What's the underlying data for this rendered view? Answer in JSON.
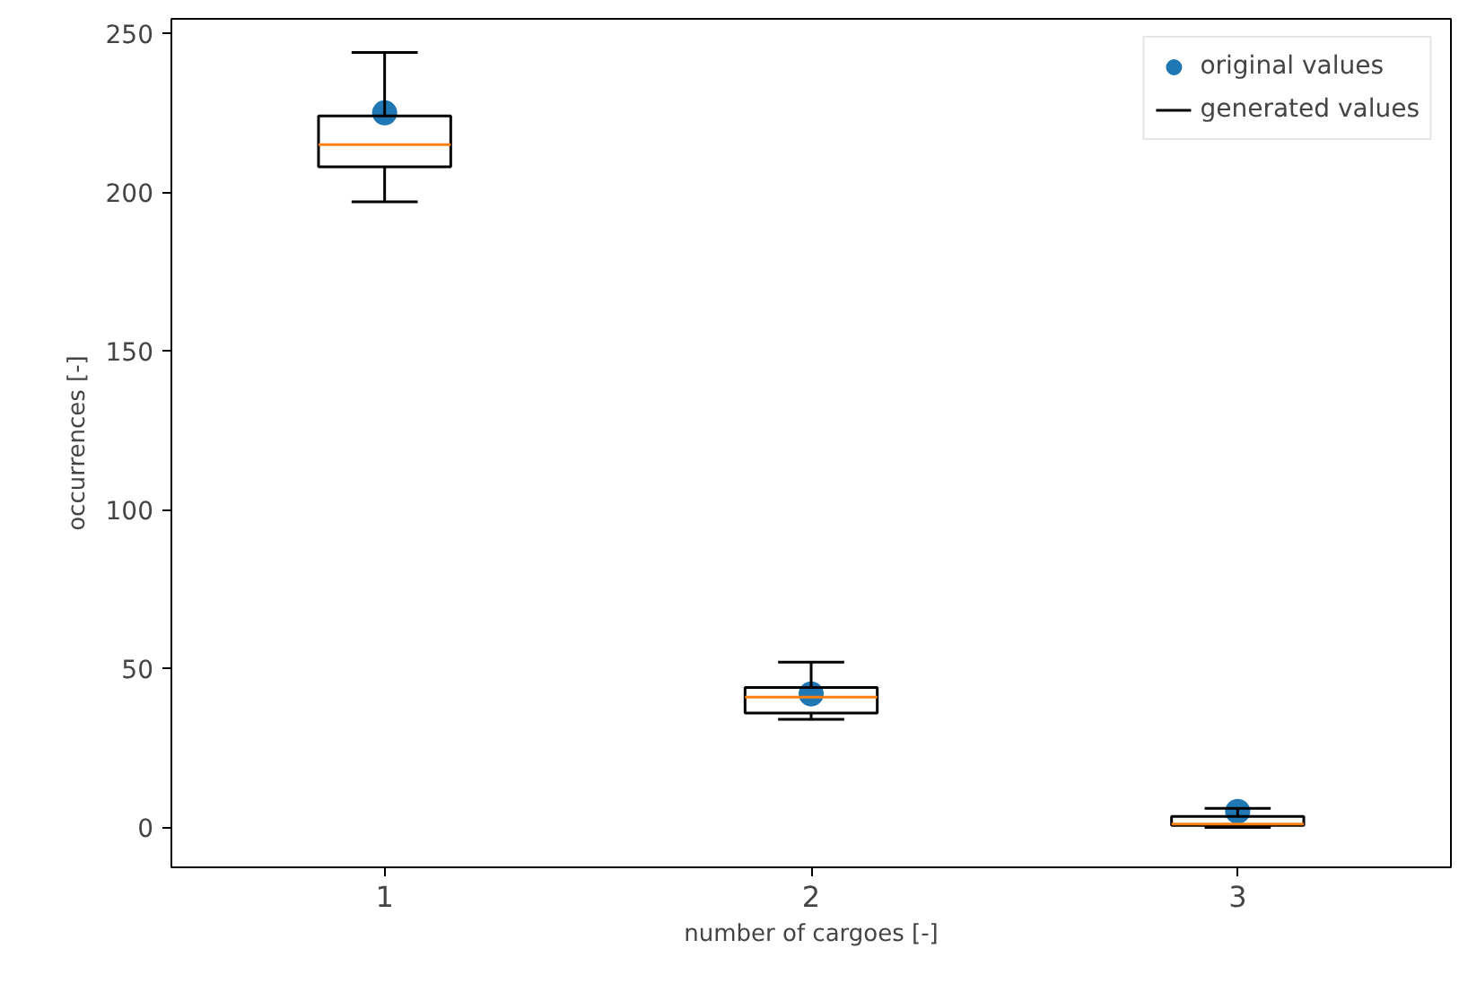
{
  "chart_data": {
    "type": "box",
    "xlabel": "number of cargoes [-]",
    "ylabel": "occurrences [-]",
    "categories": [
      "1",
      "2",
      "3"
    ],
    "ylim": [
      -12.6,
      254.6
    ],
    "yticks": [
      0,
      50,
      100,
      150,
      200,
      250
    ],
    "series": [
      {
        "name": "original values",
        "type": "scatter",
        "color": "#1f77b4",
        "x": [
          "1",
          "2",
          "3"
        ],
        "values": [
          225,
          42,
          5
        ]
      },
      {
        "name": "generated values",
        "color": "#000000",
        "boxes": [
          {
            "low": 197,
            "q1": 208,
            "median": 215,
            "q3": 224,
            "high": 244
          },
          {
            "low": 34,
            "q1": 36,
            "median": 41,
            "q3": 44,
            "high": 52
          },
          {
            "low": 0,
            "q1": 0.6,
            "median": 1,
            "q3": 3.4,
            "high": 6
          }
        ]
      }
    ],
    "marker": "circle",
    "legend": "top right",
    "grid": false
  }
}
